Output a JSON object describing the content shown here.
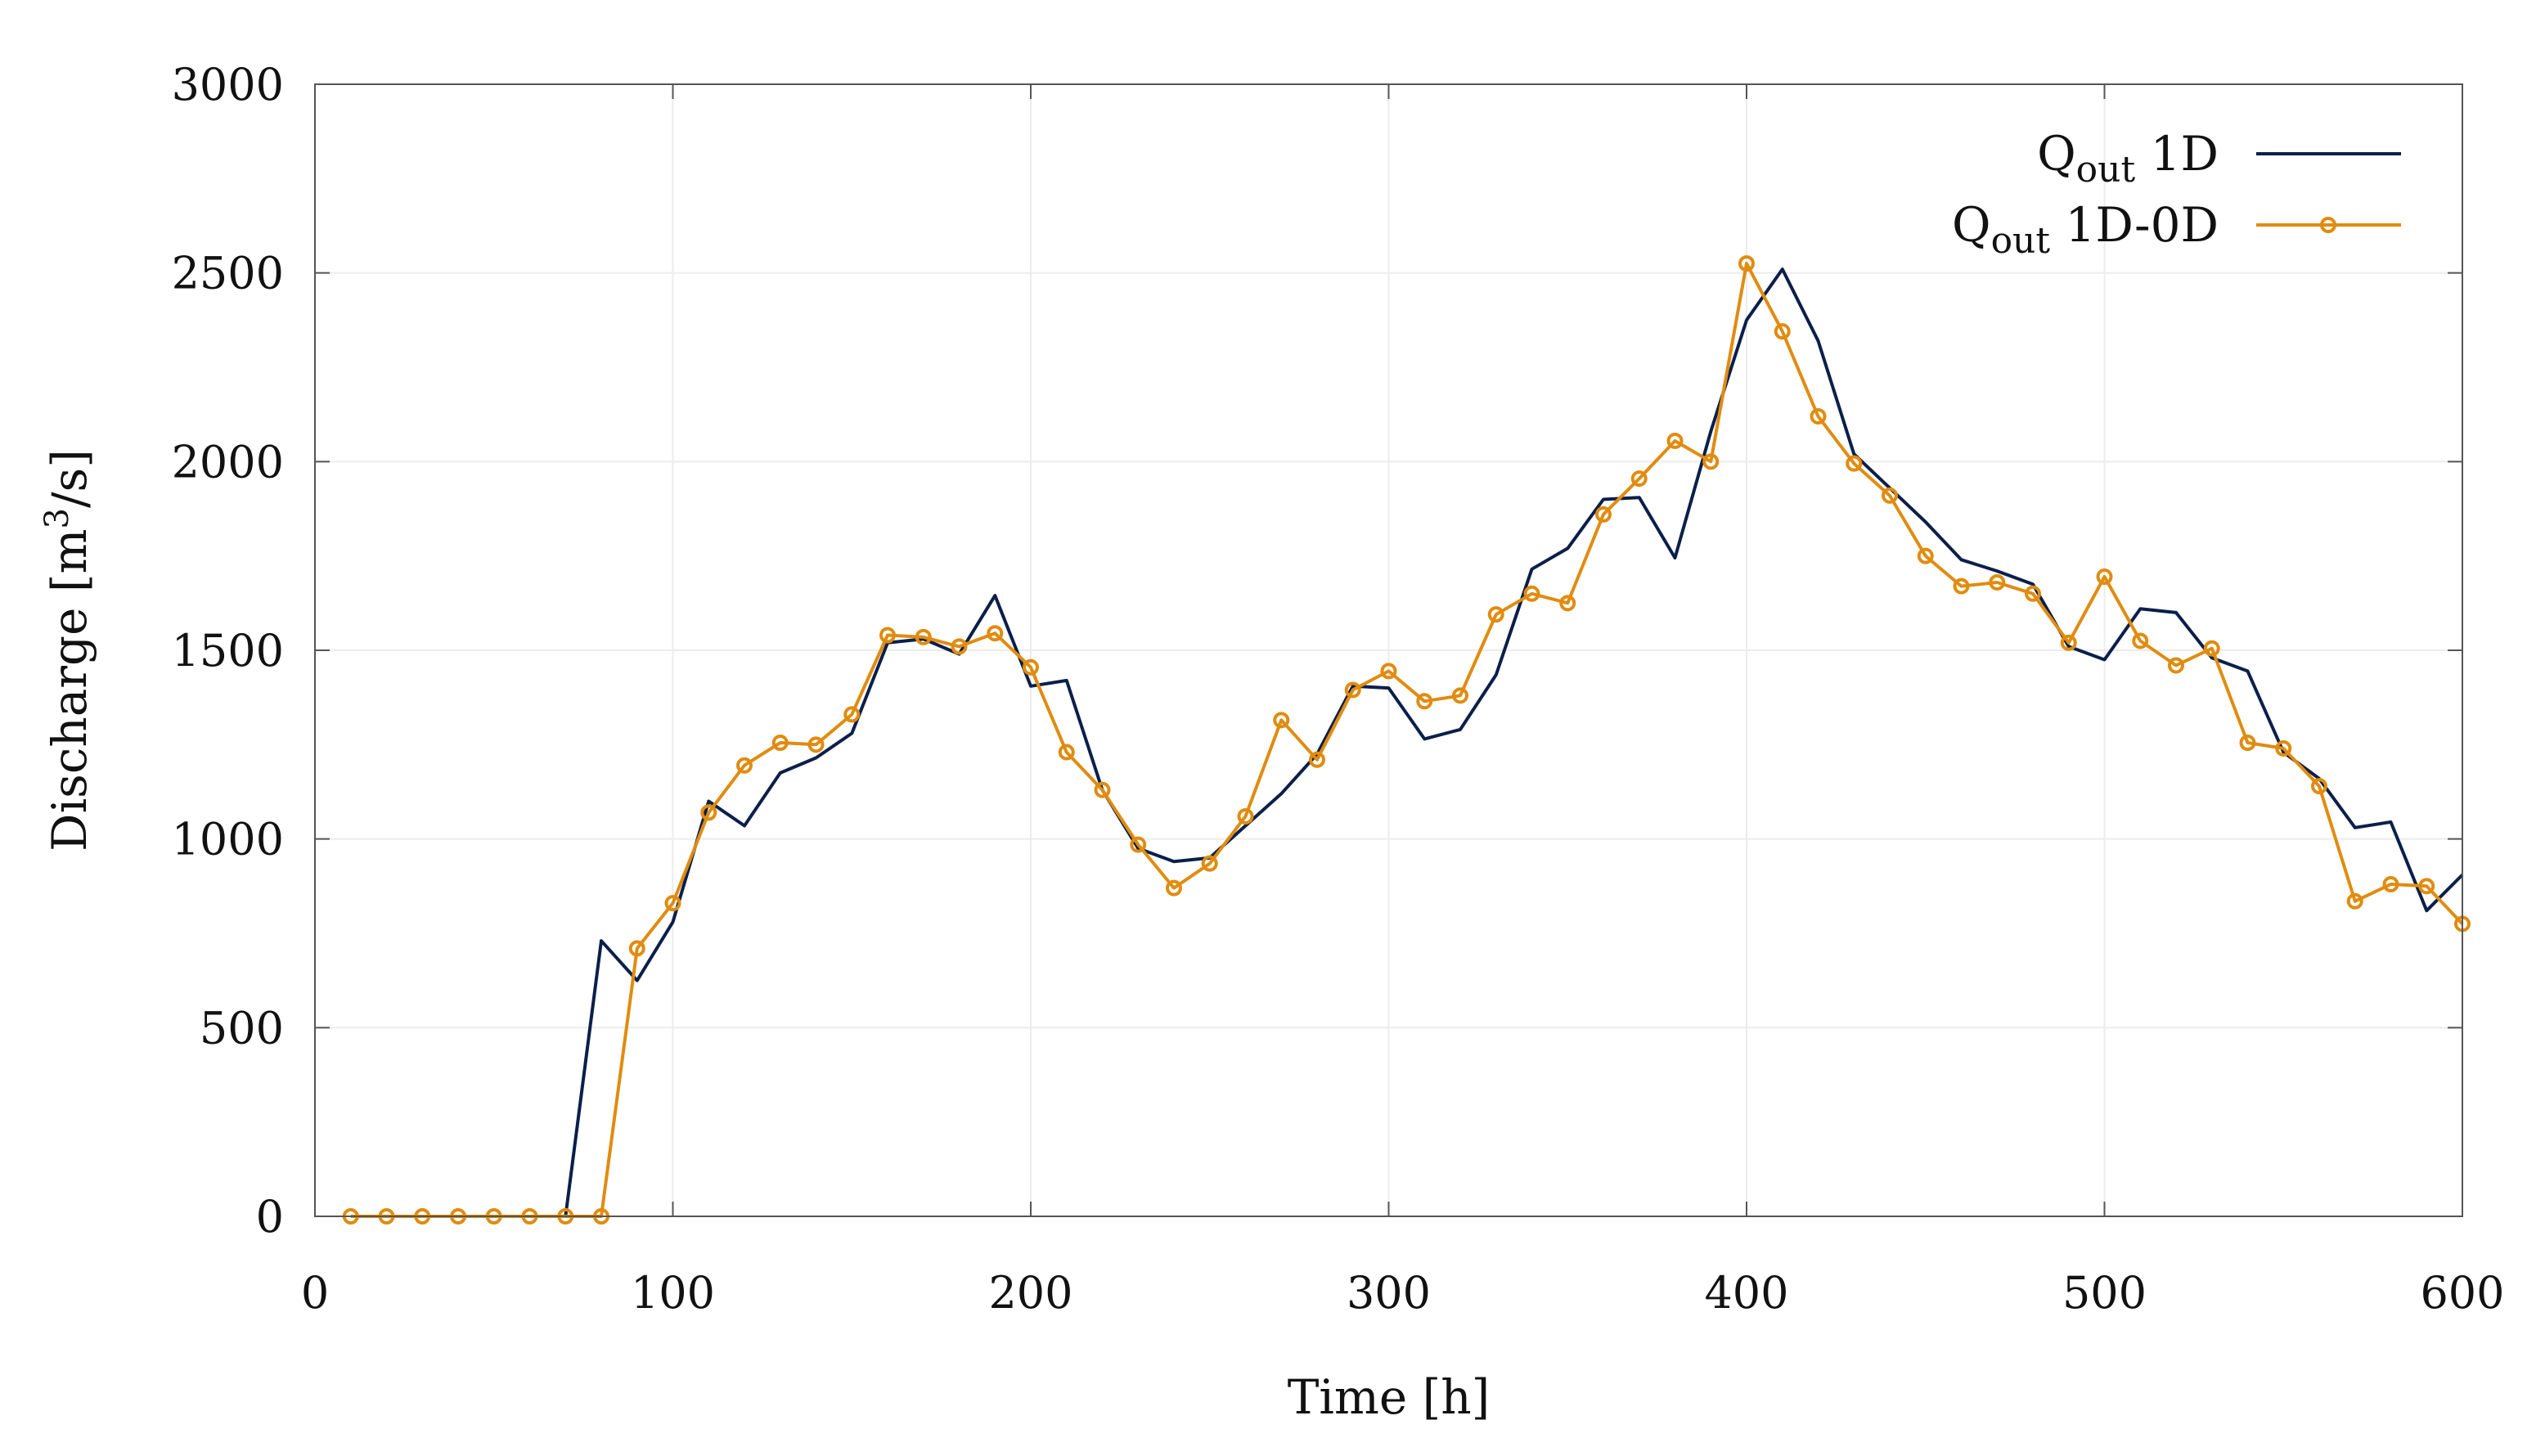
{
  "chart_data": {
    "type": "line",
    "title": "",
    "xlabel": "Time [h]",
    "ylabel_parts": {
      "before": "Discharge [m",
      "sup": "3",
      "after": "/s]"
    },
    "xlim": [
      0,
      600
    ],
    "ylim": [
      0,
      3000
    ],
    "xticks": [
      0,
      100,
      200,
      300,
      400,
      500,
      600
    ],
    "yticks": [
      0,
      500,
      1000,
      1500,
      2000,
      2500,
      3000
    ],
    "grid": true,
    "legend_position": "top-right",
    "series": [
      {
        "name": {
          "main": "Q",
          "sub": "out",
          "suffix": " 1D"
        },
        "color": "#0b1f4a",
        "marker": "none",
        "x": [
          60,
          70,
          80,
          90,
          100,
          110,
          120,
          130,
          140,
          150,
          160,
          170,
          180,
          190,
          200,
          210,
          220,
          230,
          240,
          250,
          260,
          270,
          280,
          290,
          300,
          310,
          320,
          330,
          340,
          350,
          360,
          370,
          380,
          390,
          400,
          410,
          420,
          430,
          440,
          450,
          460,
          470,
          480,
          490,
          500,
          510,
          520,
          530,
          540,
          550,
          560,
          570,
          580,
          590,
          600
        ],
        "y": [
          0,
          0,
          730,
          625,
          780,
          1100,
          1035,
          1175,
          1215,
          1280,
          1520,
          1530,
          1490,
          1645,
          1405,
          1420,
          1130,
          975,
          940,
          950,
          1035,
          1120,
          1225,
          1405,
          1400,
          1265,
          1290,
          1435,
          1715,
          1770,
          1900,
          1905,
          1745,
          2080,
          2375,
          2510,
          2320,
          2020,
          1930,
          1840,
          1740,
          1710,
          1675,
          1510,
          1475,
          1610,
          1600,
          1480,
          1445,
          1230,
          1160,
          1030,
          1045,
          810,
          905
        ]
      },
      {
        "name": {
          "main": "Q",
          "sub": "out",
          "suffix": " 1D-0D"
        },
        "color": "#e08c10",
        "marker": "circle",
        "x": [
          10,
          20,
          30,
          40,
          50,
          60,
          70,
          80,
          90,
          100,
          110,
          120,
          130,
          140,
          150,
          160,
          170,
          180,
          190,
          200,
          210,
          220,
          230,
          240,
          250,
          260,
          270,
          280,
          290,
          300,
          310,
          320,
          330,
          340,
          350,
          360,
          370,
          380,
          390,
          400,
          410,
          420,
          430,
          440,
          450,
          460,
          470,
          480,
          490,
          500,
          510,
          520,
          530,
          540,
          550,
          560,
          570,
          580,
          590,
          600
        ],
        "y": [
          0,
          0,
          0,
          0,
          0,
          0,
          0,
          0,
          710,
          830,
          1070,
          1195,
          1255,
          1250,
          1330,
          1540,
          1535,
          1510,
          1545,
          1455,
          1230,
          1130,
          985,
          870,
          935,
          1060,
          1315,
          1210,
          1395,
          1445,
          1365,
          1380,
          1595,
          1650,
          1625,
          1860,
          1955,
          2055,
          2000,
          2525,
          2345,
          2120,
          1995,
          1910,
          1750,
          1670,
          1680,
          1650,
          1520,
          1695,
          1525,
          1460,
          1505,
          1255,
          1240,
          1140,
          835,
          880,
          875,
          775
        ]
      }
    ]
  }
}
